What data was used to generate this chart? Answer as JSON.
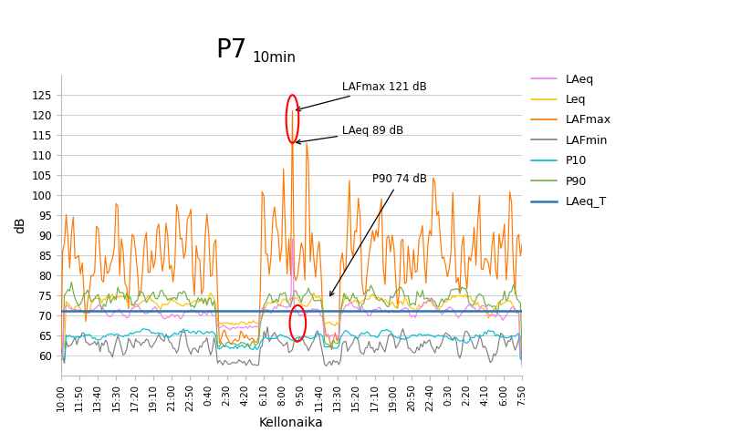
{
  "title_main": "P7",
  "title_sub": "10min",
  "xlabel": "Kellonaika",
  "ylabel": "dB",
  "ylim": [
    55,
    130
  ],
  "yticks": [
    60,
    65,
    70,
    75,
    80,
    85,
    90,
    95,
    100,
    105,
    110,
    115,
    120,
    125
  ],
  "annotation1_text": "LAFmax 121 dB",
  "annotation2_text": "LAeq 89 dB",
  "annotation3_text": "P90 74 dB",
  "colors": {
    "LAeq": "#ee82ee",
    "Leq": "#ffc000",
    "LAFmax": "#ff7700",
    "LAFmin": "#808080",
    "P10": "#00bcd4",
    "P90": "#70ad47",
    "LAeq_T": "#2e75b6"
  },
  "background": "#ffffff",
  "laeq_t_value": 71.0,
  "xtick_labels": [
    "10:00",
    "11:50",
    "13:40",
    "15:30",
    "17:20",
    "19:10",
    "21:00",
    "22:50",
    "0:40",
    "2:30",
    "4:20",
    "6:10",
    "8:00",
    "9:50",
    "11:40",
    "13:30",
    "15:20",
    "17:10",
    "19:00",
    "20:50",
    "22:40",
    "0:30",
    "2:20",
    "4:10",
    "6:00",
    "7:50"
  ]
}
